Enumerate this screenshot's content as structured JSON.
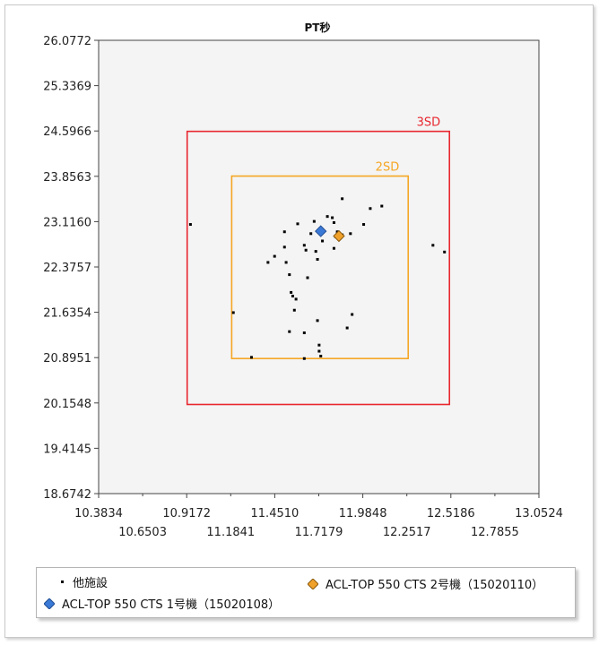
{
  "chart_data": {
    "type": "scatter",
    "title": "PT秒",
    "xlim": [
      10.3834,
      13.0524
    ],
    "ylim": [
      18.6742,
      26.0772
    ],
    "x_ticks_lower": [
      "10.3834",
      "10.9172",
      "11.4510",
      "11.9848",
      "12.5186",
      "13.0524"
    ],
    "x_ticks_upper": [
      "10.6503",
      "11.1841",
      "11.7179",
      "12.2517",
      "12.7855"
    ],
    "x_tick_values_lower": [
      10.3834,
      10.9172,
      11.451,
      11.9848,
      12.5186,
      13.0524
    ],
    "x_tick_values_upper": [
      10.6503,
      11.1841,
      11.7179,
      12.2517,
      12.7855
    ],
    "y_ticks": [
      "18.6742",
      "19.4145",
      "20.1548",
      "20.8951",
      "21.6354",
      "22.3757",
      "23.1160",
      "23.8563",
      "24.5966",
      "25.3369",
      "26.0772"
    ],
    "y_tick_values": [
      18.6742,
      19.4145,
      20.1548,
      20.8951,
      21.6354,
      22.3757,
      23.116,
      23.8563,
      24.5966,
      25.3369,
      26.0772
    ],
    "grid": false,
    "legend_position": "bottom",
    "sd_boxes": [
      {
        "label": "3SD",
        "x": [
          10.92,
          12.51
        ],
        "y": [
          20.13,
          24.59
        ],
        "color": "#e8272f"
      },
      {
        "label": "2SD",
        "x": [
          11.19,
          12.26
        ],
        "y": [
          20.88,
          23.86
        ],
        "color": "#f5a623"
      }
    ],
    "series": [
      {
        "name": "他施設",
        "marker": "dot",
        "color": "#000000",
        "points": [
          [
            10.94,
            23.07
          ],
          [
            11.2,
            21.63
          ],
          [
            11.31,
            20.9
          ],
          [
            11.41,
            22.45
          ],
          [
            11.45,
            22.55
          ],
          [
            11.51,
            22.95
          ],
          [
            11.51,
            22.7
          ],
          [
            11.52,
            22.45
          ],
          [
            11.54,
            22.25
          ],
          [
            11.55,
            21.96
          ],
          [
            11.56,
            21.9
          ],
          [
            11.58,
            21.85
          ],
          [
            11.57,
            21.67
          ],
          [
            11.54,
            21.32
          ],
          [
            11.59,
            23.08
          ],
          [
            11.63,
            22.73
          ],
          [
            11.64,
            22.65
          ],
          [
            11.65,
            22.2
          ],
          [
            11.63,
            21.3
          ],
          [
            11.63,
            20.88
          ],
          [
            11.67,
            22.92
          ],
          [
            11.69,
            23.12
          ],
          [
            11.7,
            22.63
          ],
          [
            11.71,
            22.5
          ],
          [
            11.71,
            21.5
          ],
          [
            11.72,
            21.1
          ],
          [
            11.72,
            21.0
          ],
          [
            11.73,
            20.92
          ],
          [
            11.74,
            22.8
          ],
          [
            11.77,
            23.2
          ],
          [
            11.8,
            23.18
          ],
          [
            11.81,
            23.1
          ],
          [
            11.81,
            22.68
          ],
          [
            11.82,
            22.87
          ],
          [
            11.83,
            22.95
          ],
          [
            11.86,
            22.9
          ],
          [
            11.86,
            23.49
          ],
          [
            11.89,
            21.38
          ],
          [
            11.91,
            22.92
          ],
          [
            11.92,
            21.6
          ],
          [
            11.99,
            23.07
          ],
          [
            12.03,
            23.33
          ],
          [
            12.1,
            23.37
          ],
          [
            12.41,
            22.73
          ],
          [
            12.48,
            22.62
          ]
        ]
      },
      {
        "name": "ACL-TOP 550 CTS 1号機（15020108）",
        "marker": "diamond",
        "color": "#3a79d6",
        "points": [
          [
            11.73,
            22.96
          ]
        ]
      },
      {
        "name": "ACL-TOP 550 CTS 2号機（15020110）",
        "marker": "diamond",
        "color": "#f0a12a",
        "points": [
          [
            11.84,
            22.88
          ]
        ]
      }
    ]
  },
  "legend": {
    "items": [
      {
        "label": "他施設"
      },
      {
        "label": "ACL-TOP 550 CTS 1号機（15020108）"
      },
      {
        "label": "ACL-TOP 550 CTS 2号機（15020110）"
      }
    ]
  }
}
